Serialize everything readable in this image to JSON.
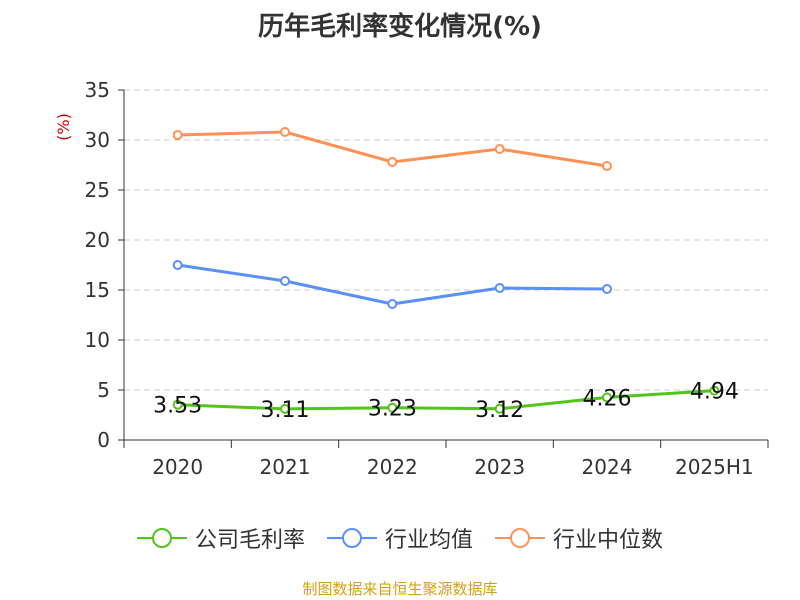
{
  "chart_data": {
    "type": "line",
    "title": "历年毛利率变化情况(%)",
    "ylabel": "(%)",
    "categories": [
      "2020",
      "2021",
      "2022",
      "2023",
      "2024",
      "2025H1"
    ],
    "ylim": [
      0,
      35
    ],
    "yticks": [
      0,
      5,
      10,
      15,
      20,
      25,
      30,
      35
    ],
    "grid": true,
    "legend_position": "bottom",
    "series": [
      {
        "name": "公司毛利率",
        "color": "#52c41a",
        "values": [
          3.53,
          3.11,
          3.23,
          3.12,
          4.26,
          4.94
        ],
        "labels": [
          "3.53",
          "3.11",
          "3.23",
          "3.12",
          "4.26",
          "4.94"
        ]
      },
      {
        "name": "行业均值",
        "color": "#5b8ff9",
        "values": [
          17.5,
          15.9,
          13.6,
          15.2,
          15.1,
          null
        ]
      },
      {
        "name": "行业中位数",
        "color": "#ff9155",
        "values": [
          30.5,
          30.8,
          27.8,
          29.1,
          27.4,
          null
        ]
      }
    ]
  },
  "colors": {
    "axis": "#333333",
    "grid": "#cccccc",
    "ylabel": "#cc0000",
    "source": "#d4a017"
  },
  "source_text": "制图数据来自恒生聚源数据库"
}
